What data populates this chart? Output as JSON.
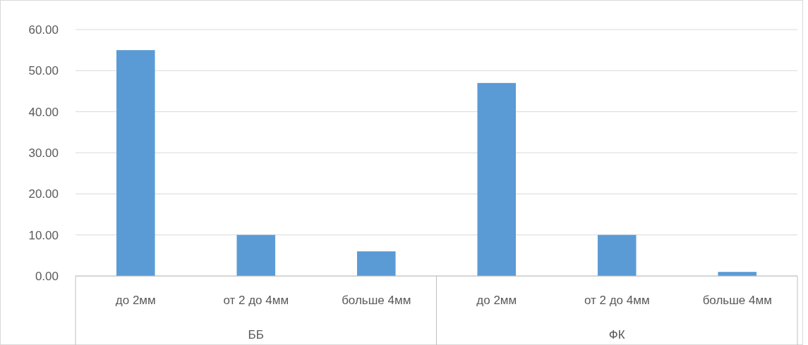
{
  "chart_data": {
    "type": "bar",
    "categories": [
      "до 2мм",
      "от 2 до 4мм",
      "больше 4мм",
      "до 2мм",
      "от 2 до 4мм",
      "больше 4мм"
    ],
    "values": [
      55,
      10,
      6,
      47,
      10,
      1
    ],
    "color": "#5b9bd5",
    "ylim": [
      0,
      60
    ],
    "yticks": [
      {
        "value": 0,
        "label": "0.00"
      },
      {
        "value": 10,
        "label": "10.00"
      },
      {
        "value": 20,
        "label": "20.00"
      },
      {
        "value": 30,
        "label": "30.00"
      },
      {
        "value": 40,
        "label": "40.00"
      },
      {
        "value": 50,
        "label": "50.00"
      },
      {
        "value": 60,
        "label": "60.00"
      }
    ],
    "grid": "y",
    "annotations": [
      "ББ",
      "ФК"
    ]
  }
}
